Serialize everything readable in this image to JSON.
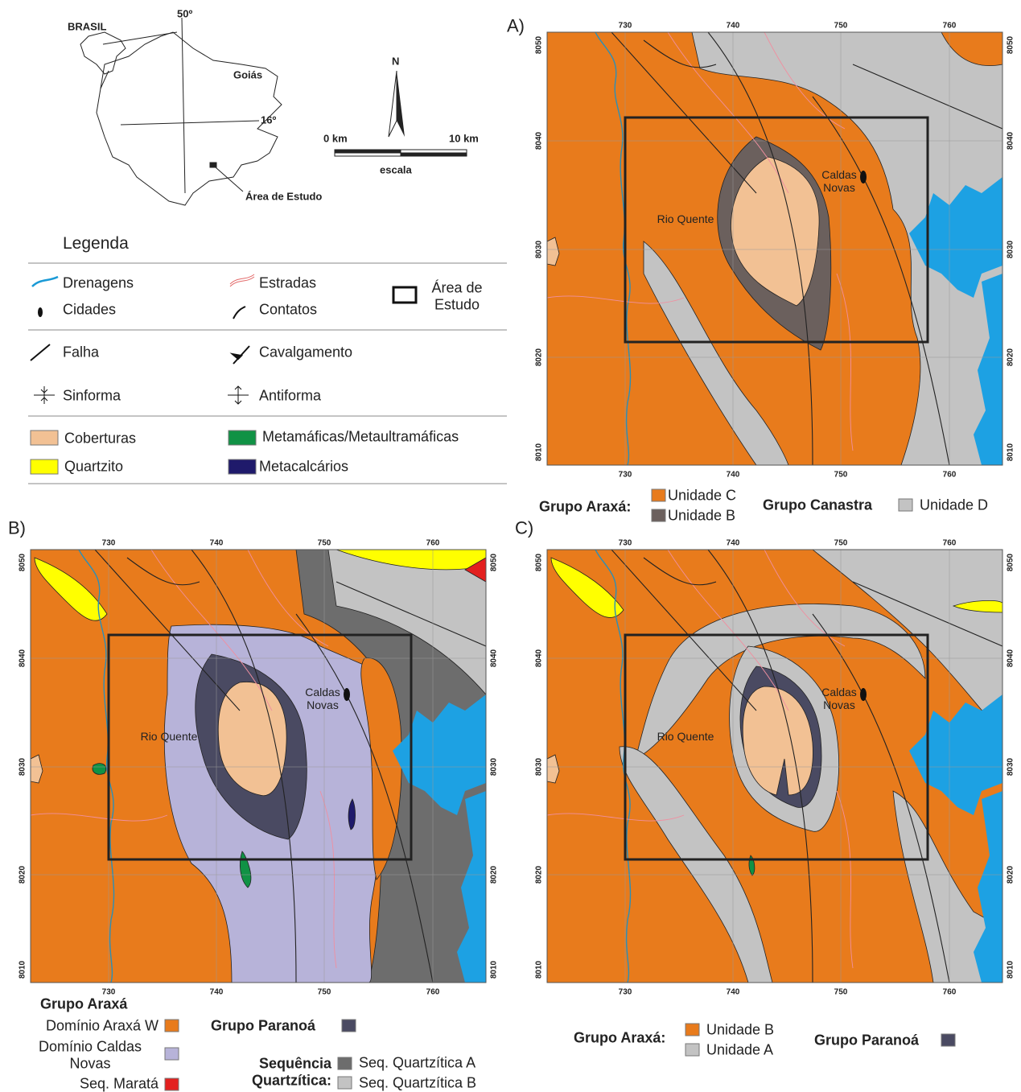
{
  "location_map": {
    "country": "BRASIL",
    "longitude": "50º",
    "state": "Goiás",
    "latitude": "16º",
    "study_area": "Área de Estudo"
  },
  "north_arrow": "N",
  "scale": {
    "start": "0 km",
    "end": "10 km",
    "caption": "escala"
  },
  "legend": {
    "title": "Legenda",
    "items": [
      {
        "label": "Drenagens"
      },
      {
        "label": "Estradas"
      },
      {
        "label": "Área de Estudo"
      },
      {
        "label": "Cidades"
      },
      {
        "label": "Contatos"
      },
      {
        "label": "Falha"
      },
      {
        "label": "Cavalgamento"
      },
      {
        "label": "Sinforma"
      },
      {
        "label": "Antiforma"
      },
      {
        "label": "Coberturas",
        "color": "#f2c194"
      },
      {
        "label": "Metamáficas/Metaultramáficas",
        "color": "#109245"
      },
      {
        "label": "Quartzito",
        "color": "#ffff00"
      },
      {
        "label": "Metacalcários",
        "color": "#1f1a6b"
      }
    ]
  },
  "panels": [
    {
      "label": "A)",
      "x_ticks": [
        730,
        740,
        750,
        760
      ],
      "y_ticks": [
        8050,
        8040,
        8030,
        8020,
        8010
      ],
      "towns": [
        "Caldas Novas",
        "Rio Quente"
      ],
      "legend": {
        "groups": [
          {
            "name": "Grupo Araxá:",
            "units": [
              {
                "name": "Unidade C",
                "color": "#e87b1c"
              },
              {
                "name": "Unidade B",
                "color": "#6b605d"
              }
            ]
          },
          {
            "name": "Grupo Canastra",
            "units": [
              {
                "name": "Unidade D",
                "color": "#c3c3c3"
              }
            ]
          }
        ]
      }
    },
    {
      "label": "B)",
      "x_ticks": [
        730,
        740,
        750,
        760
      ],
      "y_ticks": [
        8050,
        8040,
        8030,
        8020,
        8010
      ],
      "towns": [
        "Caldas Novas",
        "Rio Quente"
      ],
      "legend": {
        "groups": [
          {
            "name": "Grupo Araxá",
            "units": [
              {
                "name": "Domínio Araxá W",
                "color": "#e87b1c"
              },
              {
                "name": "Domínio Caldas Novas",
                "color": "#b7b3d9"
              },
              {
                "name": "Seq. Maratá",
                "color": "#e3201f"
              }
            ]
          },
          {
            "name": "Grupo Paranoá",
            "color": "#4a4a62"
          },
          {
            "name": "Sequência Quartzítica:",
            "units": [
              {
                "name": "Seq. Quartzítica A",
                "color": "#6d6d6d"
              },
              {
                "name": "Seq. Quartzítica B",
                "color": "#c3c3c3"
              }
            ]
          }
        ]
      }
    },
    {
      "label": "C)",
      "x_ticks": [
        730,
        740,
        750,
        760
      ],
      "y_ticks": [
        8050,
        8040,
        8030,
        8020,
        8010
      ],
      "towns": [
        "Caldas Novas",
        "Rio Quente"
      ],
      "legend": {
        "groups": [
          {
            "name": "Grupo Araxá:",
            "units": [
              {
                "name": "Unidade B",
                "color": "#e87b1c"
              },
              {
                "name": "Unidade A",
                "color": "#c3c3c3"
              }
            ]
          },
          {
            "name": "Grupo Paranoá",
            "color": "#4a4a62"
          }
        ]
      }
    }
  ]
}
